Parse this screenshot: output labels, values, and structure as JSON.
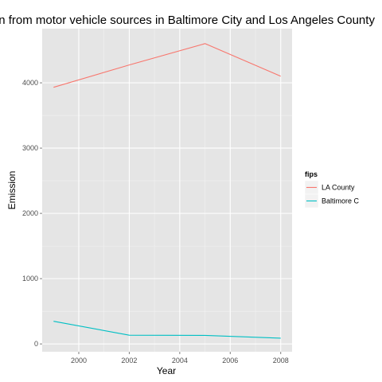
{
  "chart_data": {
    "type": "line",
    "title": "Emisson from motor vehicle sources in Baltimore City and Los Angeles County",
    "xlabel": "Year",
    "ylabel": "Emission",
    "x": [
      1999,
      2002,
      2005,
      2008
    ],
    "xlim": [
      1998.55,
      2008.45
    ],
    "ylim": [
      -120,
      4830
    ],
    "xticks": [
      2000,
      2002,
      2004,
      2006,
      2008
    ],
    "yticks": [
      0,
      1000,
      2000,
      3000,
      4000
    ],
    "grid": true,
    "legend": {
      "title": "fips",
      "position": "right"
    },
    "series": [
      {
        "name": "LA County",
        "color": "#F8766D",
        "values": [
          3931,
          4274,
          4601,
          4101
        ]
      },
      {
        "name": "Baltimore C",
        "color": "#00BFC4",
        "values": [
          347,
          134,
          131,
          88
        ]
      }
    ],
    "colors": {
      "panel": "#E5E5E5",
      "grid_major": "#FFFFFF",
      "grid_minor": "#F2F2F2",
      "tick_text": "#4D4D4D"
    }
  }
}
